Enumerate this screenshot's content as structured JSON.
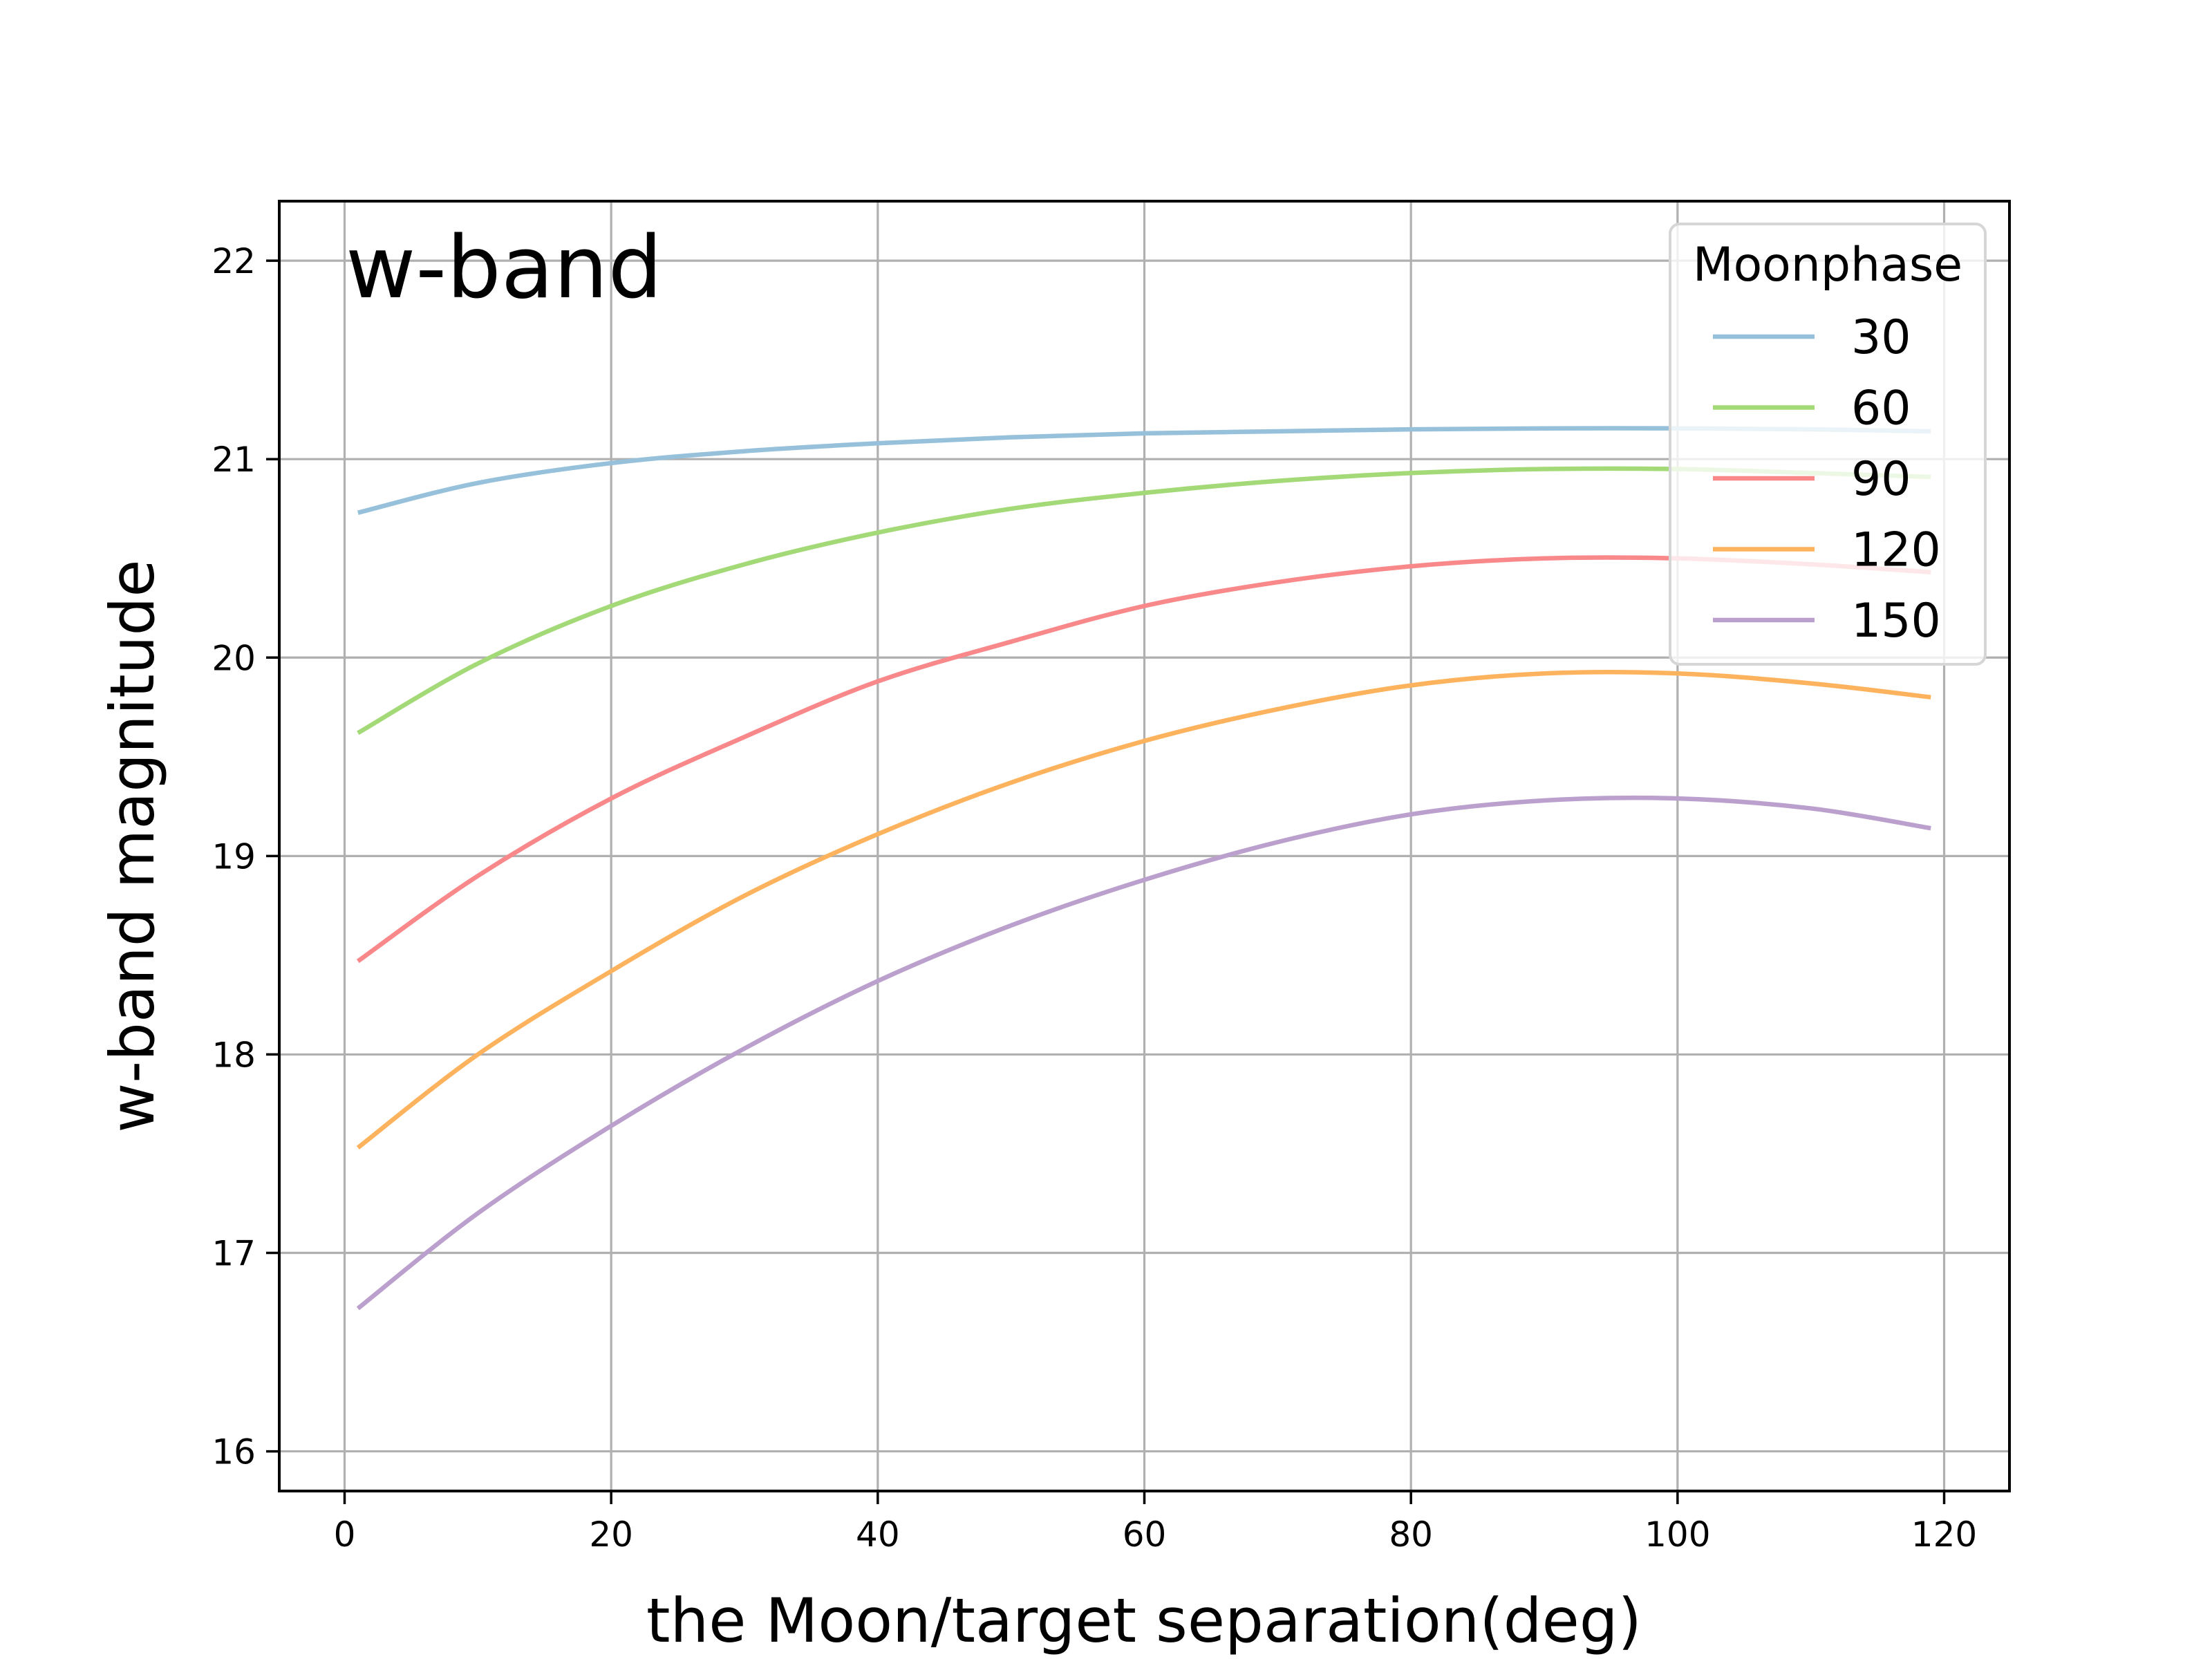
{
  "chart_data": {
    "type": "line",
    "title": "w-band",
    "xlabel": "the Moon/target separation(deg)",
    "ylabel": "w-band magnitude",
    "xlim": [
      -4.9,
      124.9
    ],
    "ylim": [
      15.8,
      22.3
    ],
    "xticks": [
      0,
      20,
      40,
      60,
      80,
      100,
      120
    ],
    "yticks": [
      16,
      17,
      18,
      19,
      20,
      21,
      22
    ],
    "grid": true,
    "legend": {
      "title": "Moonphase",
      "placement": "top-right"
    },
    "x": [
      1,
      10,
      20,
      30,
      40,
      50,
      60,
      70,
      80,
      90,
      100,
      110,
      119
    ],
    "series": [
      {
        "name": "30",
        "color": "#97c1da",
        "values": [
          20.73,
          20.88,
          20.98,
          21.04,
          21.08,
          21.11,
          21.13,
          21.14,
          21.15,
          21.155,
          21.155,
          21.15,
          21.14
        ]
      },
      {
        "name": "60",
        "color": "#a3d977",
        "values": [
          19.62,
          19.97,
          20.26,
          20.47,
          20.63,
          20.75,
          20.83,
          20.89,
          20.93,
          20.95,
          20.95,
          20.93,
          20.91
        ]
      },
      {
        "name": "90",
        "color": "#f8888a",
        "values": [
          18.47,
          18.9,
          19.29,
          19.6,
          19.88,
          20.08,
          20.26,
          20.38,
          20.46,
          20.5,
          20.5,
          20.47,
          20.43
        ]
      },
      {
        "name": "120",
        "color": "#fdb35d",
        "values": [
          17.53,
          18.0,
          18.42,
          18.8,
          19.11,
          19.37,
          19.58,
          19.74,
          19.86,
          19.92,
          19.92,
          19.87,
          19.8
        ]
      },
      {
        "name": "150",
        "color": "#bb9fcc",
        "values": [
          16.72,
          17.2,
          17.64,
          18.03,
          18.37,
          18.65,
          18.88,
          19.07,
          19.21,
          19.28,
          19.29,
          19.24,
          19.14
        ]
      }
    ]
  }
}
